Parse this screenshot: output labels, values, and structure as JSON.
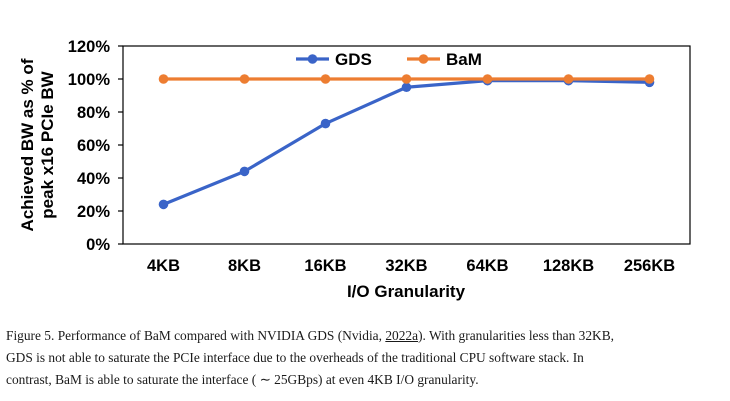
{
  "chart_data": {
    "type": "line",
    "categories": [
      "4KB",
      "8KB",
      "16KB",
      "32KB",
      "64KB",
      "128KB",
      "256KB"
    ],
    "series": [
      {
        "name": "GDS",
        "values": [
          24,
          44,
          73,
          95,
          99,
          99,
          98
        ],
        "color": "#3a64c8"
      },
      {
        "name": "BaM",
        "values": [
          100,
          100,
          100,
          100,
          100,
          100,
          100
        ],
        "color": "#ed7d31"
      }
    ],
    "ylim": [
      0,
      120
    ],
    "yticks": [
      0,
      20,
      40,
      60,
      80,
      100,
      120
    ],
    "ytick_labels": [
      "0%",
      "20%",
      "40%",
      "60%",
      "80%",
      "100%",
      "120%"
    ],
    "ylabel_line1": "Achieved BW as % of",
    "ylabel_line2": "peak x16 PCIe BW",
    "xlabel": "I/O Granularity",
    "legend_position": "top-center",
    "grid": false
  },
  "caption": {
    "prefix": "Figure 5.",
    "line1_a": " Performance of BaM compared with NVIDIA GDS (Nvidia, ",
    "cite": "2022a",
    "line1_b": "). With granularities less than 32KB,",
    "line2": "GDS is not able to saturate the PCIe interface due to the overheads of the traditional CPU software stack. In",
    "line3": "contrast, BaM is able to saturate the interface ( ∼ 25GBps) at even 4KB I/O granularity."
  }
}
